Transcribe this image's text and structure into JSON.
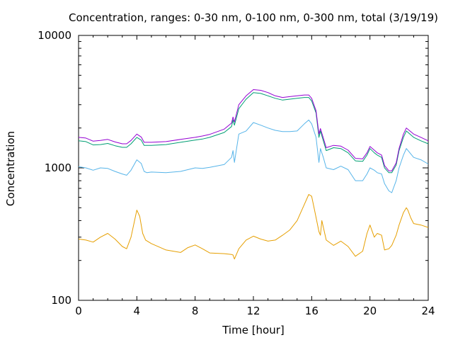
{
  "chart_data": {
    "type": "line",
    "title": "Concentration, ranges: 0-30 nm, 0-100 nm, 0-300 nm, total (3/19/19)",
    "xlabel": "Time [hour]",
    "ylabel": "Concentration",
    "xlim": [
      0,
      24
    ],
    "ylim": [
      100,
      10000
    ],
    "y_scale": "log",
    "x_ticks": [
      "0",
      "4",
      "8",
      "12",
      "16",
      "20",
      "24"
    ],
    "y_ticks": [
      "100",
      "1000",
      "10000"
    ],
    "grid": false,
    "legend": "none",
    "series": [
      {
        "color": "#e69f00",
        "x": [
          0,
          0.5,
          1,
          1.5,
          2,
          2.5,
          3,
          3.3,
          3.6,
          4,
          4.2,
          4.4,
          4.6,
          5,
          6,
          7,
          7.5,
          8,
          8.5,
          9,
          10,
          10.5,
          10.6,
          10.7,
          11,
          11.5,
          12,
          12.5,
          13,
          13.5,
          14,
          14.5,
          15,
          15.5,
          15.8,
          16,
          16.2,
          16.5,
          16.6,
          16.7,
          17,
          17.5,
          18,
          18.5,
          19,
          19.5,
          19.8,
          20,
          20.3,
          20.5,
          20.8,
          21,
          21.3,
          21.5,
          21.8,
          22,
          22.3,
          22.5,
          22.6,
          22.8,
          23,
          23.5,
          24
        ],
        "y": [
          290,
          285,
          275,
          300,
          320,
          290,
          255,
          245,
          300,
          480,
          430,
          320,
          285,
          268,
          240,
          230,
          250,
          262,
          245,
          228,
          225,
          222,
          220,
          205,
          245,
          285,
          305,
          290,
          280,
          285,
          310,
          340,
          400,
          530,
          630,
          610,
          480,
          330,
          310,
          400,
          285,
          260,
          280,
          255,
          215,
          235,
          320,
          370,
          300,
          320,
          310,
          240,
          245,
          260,
          310,
          370,
          460,
          500,
          480,
          420,
          380,
          370,
          355
        ]
      },
      {
        "color": "#56b4e9",
        "x": [
          0,
          0.5,
          1,
          1.5,
          2,
          2.5,
          3,
          3.3,
          3.6,
          4,
          4.3,
          4.5,
          4.7,
          5,
          6,
          7,
          8,
          8.5,
          9,
          10,
          10.5,
          10.6,
          10.7,
          11,
          11.5,
          12,
          12.5,
          13,
          13.5,
          14,
          14.5,
          15,
          15.5,
          15.8,
          16,
          16.3,
          16.5,
          16.6,
          16.8,
          17,
          17.5,
          18,
          18.5,
          19,
          19.5,
          19.8,
          20,
          20.3,
          20.5,
          20.8,
          21,
          21.3,
          21.5,
          21.8,
          22,
          22.3,
          22.5,
          23,
          23.5,
          24
        ],
        "y": [
          1020,
          1000,
          960,
          1000,
          990,
          940,
          900,
          880,
          960,
          1150,
          1080,
          940,
          920,
          930,
          920,
          940,
          1000,
          990,
          1010,
          1060,
          1200,
          1350,
          1100,
          1800,
          1900,
          2200,
          2100,
          2000,
          1920,
          1880,
          1880,
          1900,
          2150,
          2300,
          2150,
          1700,
          1100,
          1400,
          1200,
          1000,
          970,
          1030,
          970,
          800,
          800,
          900,
          1000,
          960,
          920,
          900,
          760,
          670,
          650,
          800,
          1000,
          1250,
          1400,
          1200,
          1150,
          1070
        ]
      },
      {
        "color": "#009e73",
        "x": [
          0,
          0.5,
          1,
          1.5,
          2,
          2.5,
          3,
          3.3,
          3.6,
          4,
          4.3,
          4.5,
          4.7,
          5,
          6,
          7,
          8,
          8.5,
          9,
          10,
          10.5,
          10.6,
          10.7,
          11,
          11.5,
          12,
          12.5,
          13,
          13.5,
          14,
          14.5,
          15,
          15.5,
          15.8,
          16,
          16.3,
          16.5,
          16.6,
          16.8,
          17,
          17.5,
          18,
          18.5,
          19,
          19.5,
          19.8,
          20,
          20.3,
          20.5,
          20.8,
          21,
          21.3,
          21.5,
          21.8,
          22,
          22.3,
          22.5,
          23,
          23.5,
          24
        ],
        "y": [
          1600,
          1580,
          1490,
          1500,
          1530,
          1470,
          1430,
          1430,
          1520,
          1700,
          1620,
          1480,
          1480,
          1480,
          1500,
          1560,
          1620,
          1650,
          1700,
          1850,
          2050,
          2300,
          2100,
          2800,
          3300,
          3700,
          3650,
          3500,
          3350,
          3250,
          3300,
          3350,
          3400,
          3400,
          3200,
          2600,
          1700,
          1900,
          1600,
          1350,
          1420,
          1400,
          1300,
          1130,
          1120,
          1250,
          1400,
          1300,
          1250,
          1200,
          1000,
          920,
          920,
          1050,
          1350,
          1700,
          1900,
          1700,
          1600,
          1520
        ]
      },
      {
        "color": "#9400d3",
        "x": [
          0,
          0.5,
          1,
          1.5,
          2,
          2.5,
          3,
          3.3,
          3.6,
          4,
          4.3,
          4.5,
          4.7,
          5,
          6,
          7,
          8,
          8.5,
          9,
          10,
          10.5,
          10.6,
          10.7,
          11,
          11.5,
          12,
          12.5,
          13,
          13.5,
          14,
          14.5,
          15,
          15.5,
          15.8,
          16,
          16.3,
          16.5,
          16.6,
          16.8,
          17,
          17.5,
          18,
          18.5,
          19,
          19.5,
          19.8,
          20,
          20.3,
          20.5,
          20.8,
          21,
          21.3,
          21.5,
          21.8,
          22,
          22.3,
          22.5,
          23,
          23.5,
          24
        ],
        "y": [
          1700,
          1680,
          1590,
          1610,
          1640,
          1570,
          1520,
          1520,
          1610,
          1800,
          1710,
          1560,
          1560,
          1560,
          1580,
          1640,
          1700,
          1740,
          1790,
          1960,
          2180,
          2420,
          2220,
          3000,
          3500,
          3900,
          3850,
          3700,
          3500,
          3400,
          3450,
          3500,
          3550,
          3550,
          3350,
          2700,
          1800,
          1980,
          1680,
          1420,
          1480,
          1460,
          1360,
          1180,
          1170,
          1300,
          1450,
          1360,
          1300,
          1250,
          1040,
          950,
          950,
          1090,
          1400,
          1800,
          2000,
          1800,
          1700,
          1600
        ]
      }
    ]
  }
}
